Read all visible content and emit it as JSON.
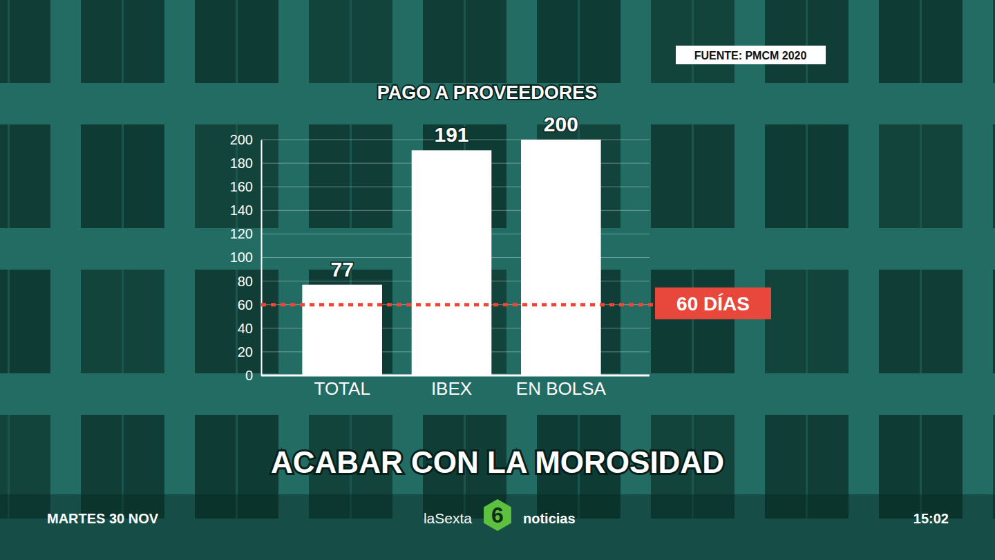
{
  "chart_data": {
    "type": "bar",
    "title": "PAGO A PROVEEDORES",
    "source": "FUENTE: PMCM 2020",
    "categories": [
      "TOTAL",
      "IBEX",
      "EN BOLSA"
    ],
    "values": [
      77,
      191,
      200
    ],
    "color": "#ffffff",
    "ylim": [
      0,
      200
    ],
    "yticks": [
      0,
      20,
      40,
      60,
      80,
      100,
      120,
      140,
      160,
      180,
      200
    ],
    "grid": true,
    "data_labels": true,
    "annotations": [
      {
        "y": 60,
        "text": "60 DÍAS",
        "color": "#e8473b"
      }
    ]
  },
  "overlay": {
    "headline": "ACABAR CON LA MOROSIDAD",
    "date": "MARTES 30 NOV",
    "channel": "laSexta",
    "logo": "6",
    "program": "noticias",
    "time": "15:02"
  }
}
